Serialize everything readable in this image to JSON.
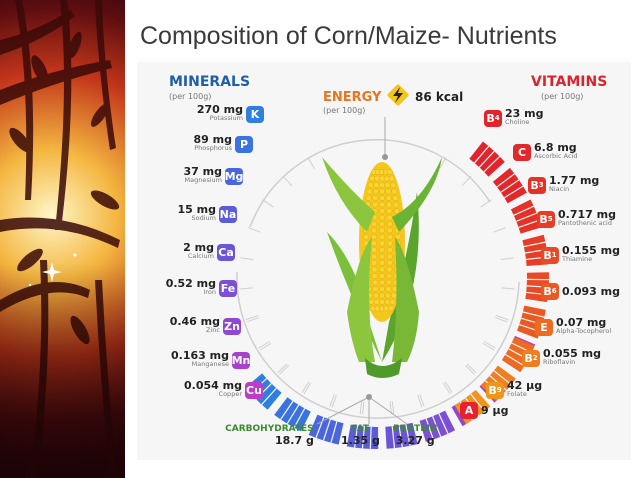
{
  "slide": {
    "title": "Composition of Corn/Maize- Nutrients"
  },
  "minerals": {
    "title": "MINERALS",
    "unit": "(per 100g)",
    "items": [
      {
        "amount": "270 mg",
        "name": "Potassium",
        "symbol": "K",
        "color": "#2f7fe0"
      },
      {
        "amount": "89 mg",
        "name": "Phosphorus",
        "symbol": "P",
        "color": "#3a73e0"
      },
      {
        "amount": "37 mg",
        "name": "Magnesium",
        "symbol": "Mg",
        "color": "#4a66dc"
      },
      {
        "amount": "15 mg",
        "name": "Sodium",
        "symbol": "Na",
        "color": "#5a5cd8"
      },
      {
        "amount": "2 mg",
        "name": "Calcium",
        "symbol": "Ca",
        "color": "#6b55d6"
      },
      {
        "amount": "0.52 mg",
        "name": "Iron",
        "symbol": "Fe",
        "color": "#7d4fd4"
      },
      {
        "amount": "0.46 mg",
        "name": "Zinc",
        "symbol": "Zn",
        "color": "#9148d0"
      },
      {
        "amount": "0.163 mg",
        "name": "Manganese",
        "symbol": "Mn",
        "color": "#a742cc"
      },
      {
        "amount": "0.054 mg",
        "name": "Copper",
        "symbol": "Cu",
        "color": "#bd3cc8"
      }
    ]
  },
  "vitamins": {
    "title": "VITAMINS",
    "unit": "(per 100g)",
    "items": [
      {
        "amount": "23 mg",
        "name": "Choline",
        "symbol": "B",
        "sub": "4",
        "color": "#e2232b"
      },
      {
        "amount": "6.8 mg",
        "name": "Ascorbic Acid",
        "symbol": "C",
        "sub": "",
        "color": "#e3282a"
      },
      {
        "amount": "1.77 mg",
        "name": "Niacin",
        "symbol": "B",
        "sub": "3",
        "color": "#e53128"
      },
      {
        "amount": "0.717 mg",
        "name": "Pantothenic acid",
        "symbol": "B",
        "sub": "5",
        "color": "#e73d27"
      },
      {
        "amount": "0.155 mg",
        "name": "Thiamine",
        "symbol": "B",
        "sub": "1",
        "color": "#e94a25"
      },
      {
        "amount": "0.093 mg",
        "name": "",
        "symbol": "B",
        "sub": "6",
        "color": "#eb5923"
      },
      {
        "amount": "0.07 mg",
        "name": "Alpha-Tocopherol",
        "symbol": "E",
        "sub": "",
        "color": "#ed6a21"
      },
      {
        "amount": "0.055 mg",
        "name": "Riboflavin",
        "symbol": "B",
        "sub": "2",
        "color": "#ee7e1f"
      },
      {
        "amount": "42 µg",
        "name": "Folate",
        "symbol": "B",
        "sub": "9",
        "color": "#f0951c"
      },
      {
        "amount": "9 µg",
        "name": "",
        "symbol": "A",
        "sub": "",
        "color": "#e8202f"
      }
    ]
  },
  "energy": {
    "title": "ENERGY",
    "unit": "(per 100g)",
    "value": "86 kcal"
  },
  "macros": [
    {
      "label": "CARBOHYDRATES",
      "value": "18.7 g"
    },
    {
      "label": "FAT",
      "value": "1.35 g"
    },
    {
      "label": "PROTEIN",
      "value": "3.27 g"
    }
  ],
  "colors": {
    "mineral_header": "#1f5fa8",
    "vitamin_header": "#d9232d",
    "energy_header": "#e8741e",
    "macro_label": "#3a8a2e",
    "energy_icon": "#f5c518"
  }
}
